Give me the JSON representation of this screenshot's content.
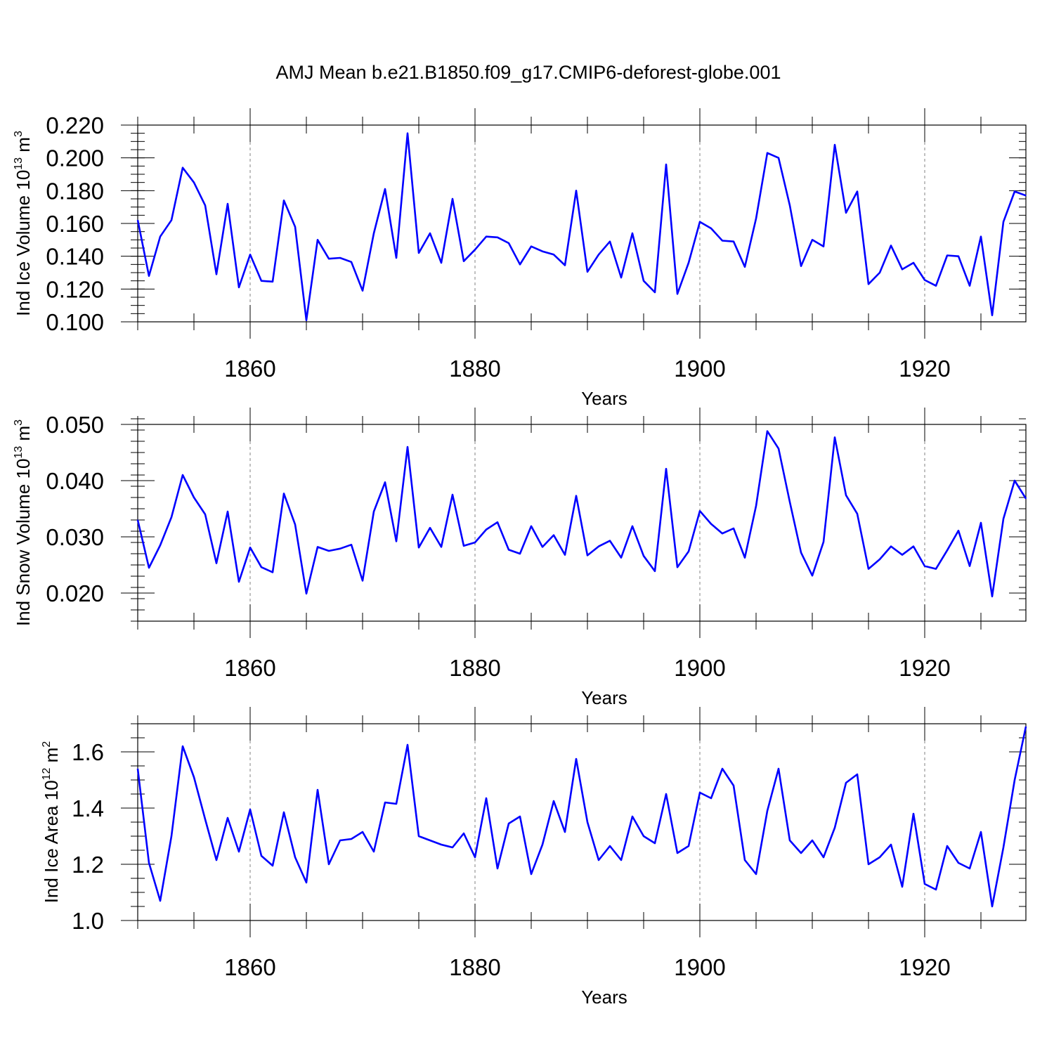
{
  "title": "AMJ Mean b.e21.B1850.f09_g17.CMIP6-deforest-globe.001",
  "colors": {
    "line": "#0000ff",
    "axis": "#000000",
    "grid": "#808080",
    "background": "#ffffff"
  },
  "chart_data": [
    {
      "type": "line",
      "title": "AMJ Mean b.e21.B1850.f09_g17.CMIP6-deforest-globe.001",
      "xlabel": "Years",
      "ylabel": {
        "main": "Ind Ice Volume 10",
        "exponent": "13",
        "unit": " m",
        "unit_exponent": "3"
      },
      "xlim": [
        1850,
        1929
      ],
      "ylim": [
        0.1,
        0.22
      ],
      "x_ticks": [
        1860,
        1880,
        1900,
        1920
      ],
      "x_tick_labels": [
        "1860",
        "1880",
        "1900",
        "1920"
      ],
      "y_ticks": [
        0.1,
        0.12,
        0.14,
        0.16,
        0.18,
        0.2,
        0.22
      ],
      "y_tick_labels": [
        "0.100",
        "0.120",
        "0.140",
        "0.160",
        "0.180",
        "0.200",
        "0.220"
      ],
      "y_minor_step": 0.005,
      "grid": "vertical dashed at major x ticks",
      "series": [
        {
          "name": "Ind Ice Volume",
          "x_start": 1850,
          "values": [
            0.162,
            0.128,
            0.152,
            0.162,
            0.194,
            0.185,
            0.171,
            0.129,
            0.172,
            0.121,
            0.141,
            0.125,
            0.1245,
            0.174,
            0.158,
            0.101,
            0.15,
            0.1385,
            0.139,
            0.1365,
            0.119,
            0.154,
            0.181,
            0.139,
            0.215,
            0.142,
            0.154,
            0.136,
            0.175,
            0.137,
            0.144,
            0.152,
            0.1515,
            0.148,
            0.135,
            0.146,
            0.143,
            0.141,
            0.1345,
            0.18,
            0.1305,
            0.141,
            0.149,
            0.127,
            0.154,
            0.125,
            0.118,
            0.196,
            0.117,
            0.136,
            0.161,
            0.157,
            0.1495,
            0.149,
            0.1335,
            0.163,
            0.203,
            0.2,
            0.171,
            0.134,
            0.15,
            0.146,
            0.208,
            0.1665,
            0.1795,
            0.123,
            0.13,
            0.1465,
            0.132,
            0.136,
            0.1255,
            0.122,
            0.1405,
            0.14,
            0.122,
            0.152,
            0.104,
            0.161,
            0.1795,
            0.177
          ]
        }
      ]
    },
    {
      "type": "line",
      "title": "",
      "xlabel": "Years",
      "ylabel": {
        "main": "Ind Snow Volume 10",
        "exponent": "13",
        "unit": " m",
        "unit_exponent": "3"
      },
      "xlim": [
        1850,
        1929
      ],
      "ylim": [
        0.015,
        0.05
      ],
      "x_ticks": [
        1860,
        1880,
        1900,
        1920
      ],
      "x_tick_labels": [
        "1860",
        "1880",
        "1900",
        "1920"
      ],
      "y_ticks": [
        0.02,
        0.03,
        0.04,
        0.05
      ],
      "y_tick_labels": [
        "0.020",
        "0.030",
        "0.040",
        "0.050"
      ],
      "y_minor_step": 0.002,
      "grid": "vertical dashed at major x ticks",
      "series": [
        {
          "name": "Ind Snow Volume",
          "x_start": 1850,
          "values": [
            0.033,
            0.0245,
            0.0285,
            0.0335,
            0.041,
            0.037,
            0.034,
            0.0253,
            0.0345,
            0.022,
            0.0281,
            0.0246,
            0.0237,
            0.0377,
            0.0322,
            0.0199,
            0.0282,
            0.0275,
            0.0279,
            0.0286,
            0.0222,
            0.0345,
            0.0397,
            0.0292,
            0.046,
            0.0281,
            0.0316,
            0.0282,
            0.0375,
            0.0284,
            0.029,
            0.0313,
            0.0326,
            0.0277,
            0.027,
            0.0319,
            0.0282,
            0.0303,
            0.0268,
            0.0373,
            0.0267,
            0.0283,
            0.0293,
            0.0263,
            0.0319,
            0.0266,
            0.0239,
            0.0421,
            0.0246,
            0.0274,
            0.0346,
            0.0323,
            0.0306,
            0.0315,
            0.0263,
            0.0355,
            0.0488,
            0.0457,
            0.0362,
            0.0272,
            0.0231,
            0.0291,
            0.0477,
            0.0374,
            0.0341,
            0.0243,
            0.026,
            0.0283,
            0.0268,
            0.0283,
            0.0248,
            0.0243,
            0.0276,
            0.0311,
            0.0248,
            0.0325,
            0.0194,
            0.0332,
            0.04,
            0.0368
          ]
        }
      ]
    },
    {
      "type": "line",
      "title": "",
      "xlabel": "Years",
      "ylabel": {
        "main": "Ind Ice Area 10",
        "exponent": "12",
        "unit": " m",
        "unit_exponent": "2"
      },
      "xlim": [
        1850,
        1929
      ],
      "ylim": [
        1.0,
        1.7
      ],
      "x_ticks": [
        1860,
        1880,
        1900,
        1920
      ],
      "x_tick_labels": [
        "1860",
        "1880",
        "1900",
        "1920"
      ],
      "y_ticks": [
        1.0,
        1.2,
        1.4,
        1.6
      ],
      "y_tick_labels": [
        "1.0",
        "1.2",
        "1.4",
        "1.6"
      ],
      "y_minor_step": 0.05,
      "grid": "vertical dashed at major x ticks",
      "series": [
        {
          "name": "Ind Ice Area",
          "x_start": 1850,
          "values": [
            1.54,
            1.205,
            1.07,
            1.3,
            1.62,
            1.51,
            1.36,
            1.215,
            1.365,
            1.245,
            1.395,
            1.23,
            1.195,
            1.385,
            1.225,
            1.135,
            1.465,
            1.2,
            1.285,
            1.29,
            1.315,
            1.245,
            1.42,
            1.415,
            1.625,
            1.3,
            1.285,
            1.27,
            1.26,
            1.31,
            1.225,
            1.435,
            1.185,
            1.345,
            1.37,
            1.165,
            1.27,
            1.425,
            1.315,
            1.575,
            1.35,
            1.215,
            1.265,
            1.215,
            1.37,
            1.3,
            1.275,
            1.45,
            1.24,
            1.265,
            1.455,
            1.435,
            1.54,
            1.48,
            1.215,
            1.165,
            1.39,
            1.54,
            1.285,
            1.24,
            1.285,
            1.225,
            1.33,
            1.49,
            1.52,
            1.2,
            1.225,
            1.27,
            1.12,
            1.38,
            1.13,
            1.11,
            1.265,
            1.205,
            1.185,
            1.315,
            1.05,
            1.26,
            1.5,
            1.69
          ]
        }
      ]
    }
  ]
}
